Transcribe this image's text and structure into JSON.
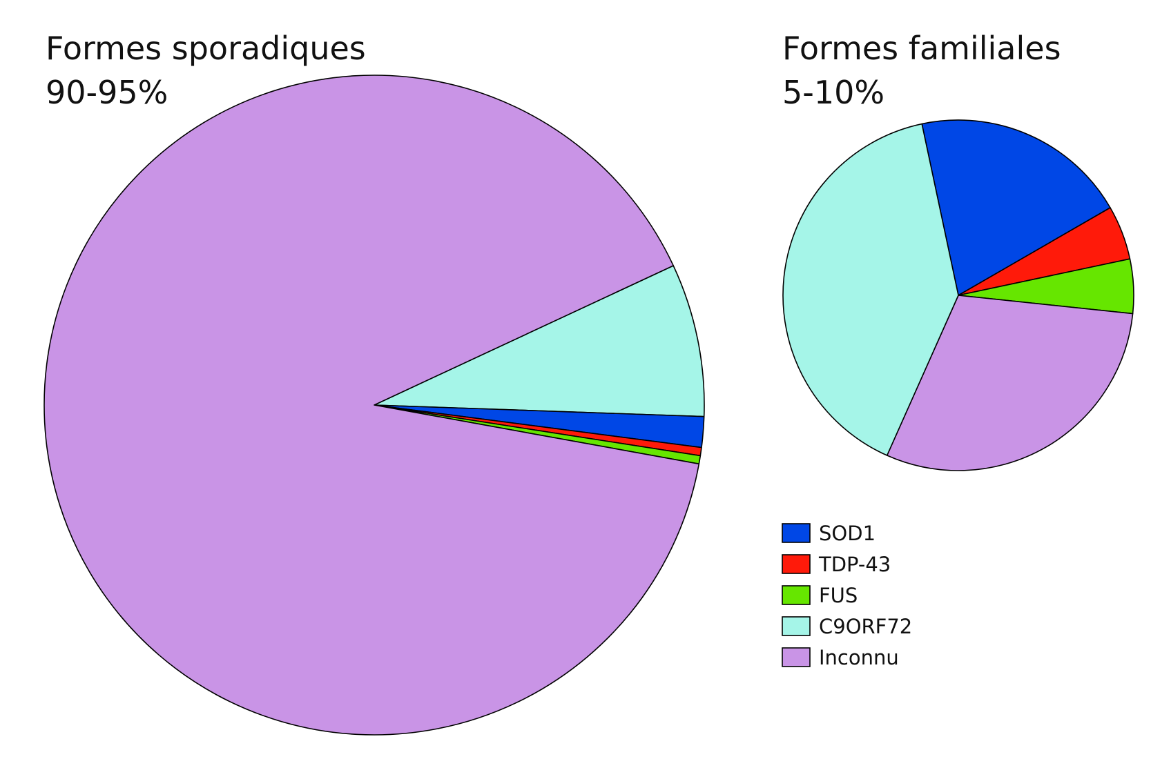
{
  "legend": [
    {
      "label": "SOD1",
      "color": "#0047e6"
    },
    {
      "label": "TDP-43",
      "color": "#ff1a0a"
    },
    {
      "label": "FUS",
      "color": "#66e600"
    },
    {
      "label": "C9ORF72",
      "color": "#a5f5e8"
    },
    {
      "label": "Inconnu",
      "color": "#c994e6"
    }
  ],
  "chart_data": [
    {
      "type": "pie",
      "title": "Formes sporadiques",
      "subtitle": "90-95%",
      "categories": [
        "SOD1",
        "TDP-43",
        "FUS",
        "C9ORF72",
        "Inconnu"
      ],
      "values": [
        1.5,
        0.4,
        0.4,
        7.5,
        90.2
      ],
      "colors": [
        "#0047e6",
        "#ff1a0a",
        "#66e600",
        "#a5f5e8",
        "#c994e6"
      ]
    },
    {
      "type": "pie",
      "title": "Formes familiales",
      "subtitle": "5-10%",
      "categories": [
        "SOD1",
        "TDP-43",
        "FUS",
        "C9ORF72",
        "Inconnu"
      ],
      "values": [
        20,
        5,
        5,
        40,
        30
      ],
      "colors": [
        "#0047e6",
        "#ff1a0a",
        "#66e600",
        "#a5f5e8",
        "#c994e6"
      ]
    }
  ]
}
